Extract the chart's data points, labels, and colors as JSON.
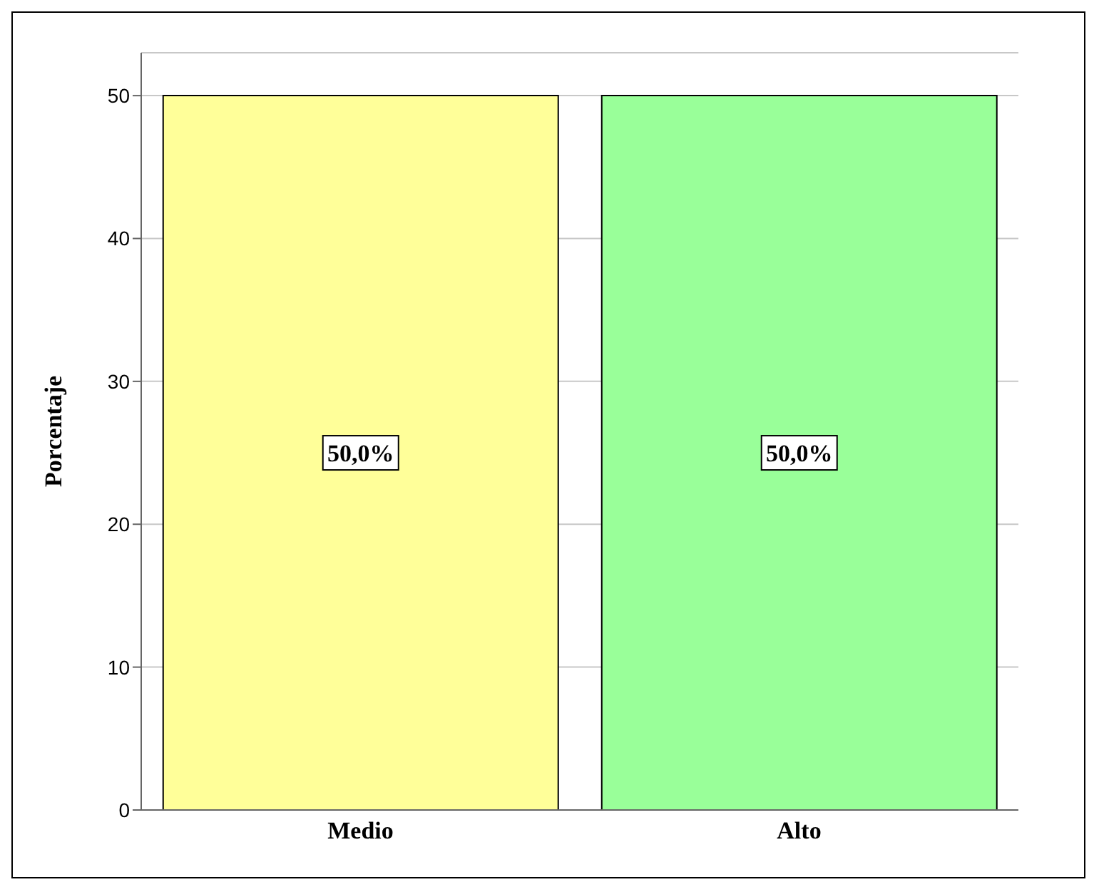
{
  "chart_data": {
    "type": "bar",
    "ylabel": "Porcentaje",
    "categories": [
      "Medio",
      "Alto"
    ],
    "values": [
      50,
      50
    ],
    "colors": [
      "#ffff99",
      "#99ff99"
    ],
    "value_labels": [
      "50,0%",
      "50,0%"
    ],
    "ylim": [
      0,
      53
    ],
    "yticks": [
      0,
      10,
      20,
      30,
      40,
      50
    ],
    "grid": "y"
  }
}
